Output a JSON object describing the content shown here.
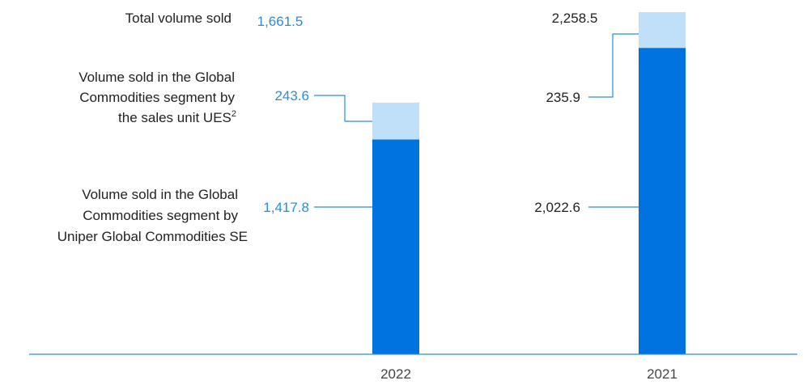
{
  "colors": {
    "primary": "#0073E1",
    "secondary": "#BFE0F8",
    "value_accent": "#2C8CE0",
    "value_dark": "#222222",
    "axis": "#2C8CE0",
    "label": "#222222"
  },
  "row_labels": {
    "total": [
      "Total volume sold"
    ],
    "ues": [
      "Volume sold in the Global",
      "Commodities segment by",
      "the sales unit UES"
    ],
    "ues_footnote": "2",
    "ugc": [
      "Volume sold in the Global",
      "Commodities segment by",
      "Uniper Global Commodities SE"
    ]
  },
  "chart_data": {
    "type": "bar",
    "stacked": true,
    "categories": [
      "2022",
      "2021"
    ],
    "series": [
      {
        "name": "Volume sold in the Global Commodities segment by Uniper Global Commodities SE",
        "values": [
          1417.8,
          2022.6
        ],
        "value_labels": [
          "1,417.8",
          "2,022.6"
        ],
        "color": "#0073E1"
      },
      {
        "name": "Volume sold in the Global Commodities segment by the sales unit UES",
        "values": [
          243.6,
          235.9
        ],
        "value_labels": [
          "243.6",
          "235.9"
        ],
        "color": "#BFE0F8"
      }
    ],
    "totals": [
      1661.5,
      2258.5
    ],
    "total_labels": [
      "1,661.5",
      "2,258.5"
    ],
    "ylim": [
      0,
      2258.5
    ],
    "grid": false,
    "legend": "left, as row labels"
  }
}
